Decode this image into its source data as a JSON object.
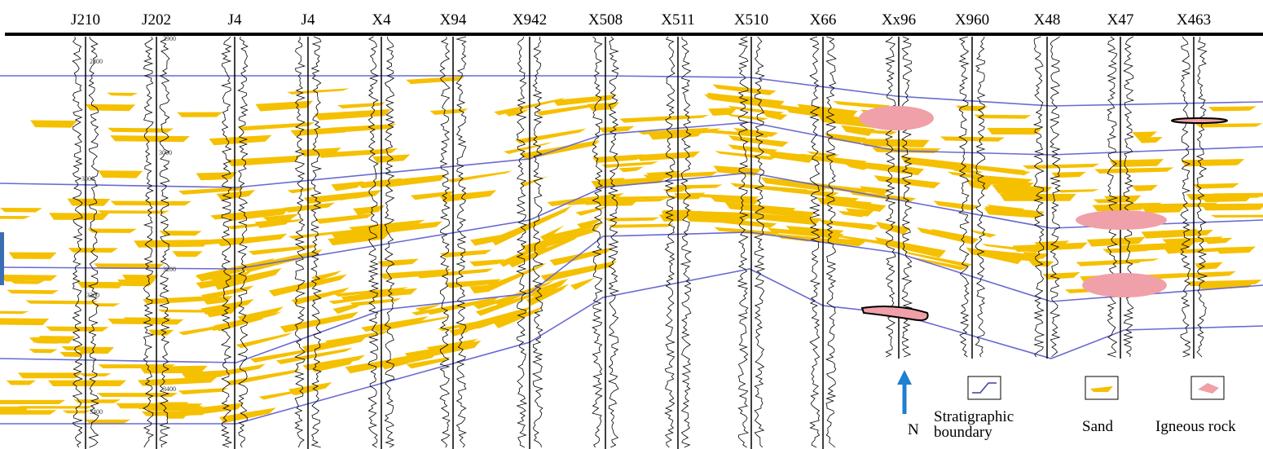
{
  "wells": [
    "J210",
    "J202",
    "J4",
    "J4",
    "X4",
    "X94",
    "X942",
    "X508",
    "X511",
    "X510",
    "X66",
    "Xx96",
    "X960",
    "X48",
    "X47",
    "X463"
  ],
  "depth_labels": [
    "2800",
    "2900",
    "3000",
    "3000",
    "3200",
    "3300",
    "3400",
    "3400"
  ],
  "north": "N",
  "legend": {
    "boundary": "Stratigraphic boundary",
    "sand": "Sand",
    "igneous": "Igneous rock"
  }
}
